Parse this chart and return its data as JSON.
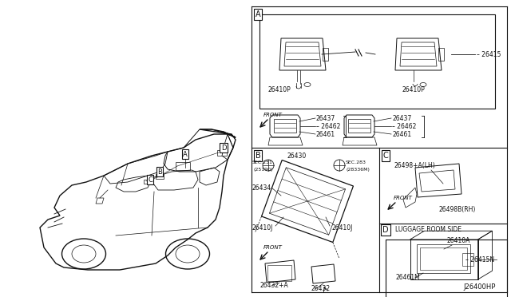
{
  "bg_color": "#ffffff",
  "diagram_id": "J26400HP",
  "fig_w": 6.4,
  "fig_h": 3.72,
  "dpi": 100,
  "lc": "#111111",
  "gray": "#777777",
  "light_gray": "#aaaaaa",
  "sections": [
    "A",
    "B",
    "C",
    "D"
  ],
  "partno_fs": 5.5,
  "label_fs": 7,
  "section_fs": 7
}
